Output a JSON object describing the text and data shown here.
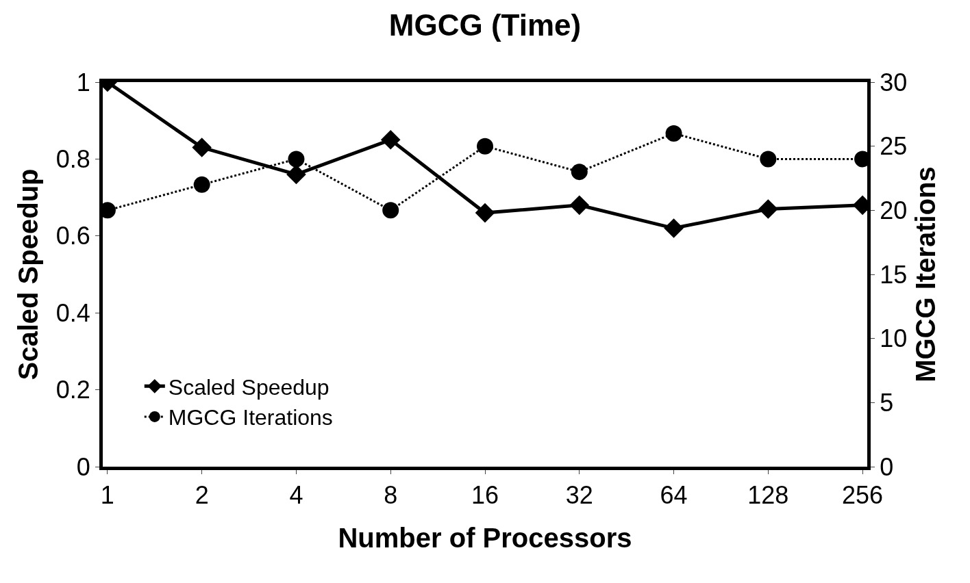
{
  "chart_data": {
    "type": "line",
    "title": "MGCG (Time)",
    "xlabel": "Number of Processors",
    "ylabel": "Scaled Speedup",
    "y2label": "MGCG Iterations",
    "categories": [
      "1",
      "2",
      "4",
      "8",
      "16",
      "32",
      "64",
      "128",
      "256"
    ],
    "series": [
      {
        "name": "Scaled Speedup",
        "color": "#000000",
        "marker": "diamond",
        "line_style": "solid",
        "values": [
          1.0,
          0.83,
          0.76,
          0.85,
          0.66,
          0.68,
          0.62,
          0.67,
          0.68
        ]
      },
      {
        "name": "MGCG Iterations",
        "color": "#000000",
        "marker": "circle",
        "line_style": "dotted",
        "axis": "y2",
        "values": [
          20,
          22,
          24,
          20,
          25,
          23,
          26,
          24,
          24
        ]
      }
    ],
    "ylim": [
      0,
      1
    ],
    "yticks": [
      0,
      0.2,
      0.4,
      0.6,
      0.8,
      1
    ],
    "y2lim": [
      0,
      30
    ],
    "y2ticks": [
      0,
      5,
      10,
      15,
      20,
      25,
      30
    ],
    "legend": "bottom left"
  }
}
